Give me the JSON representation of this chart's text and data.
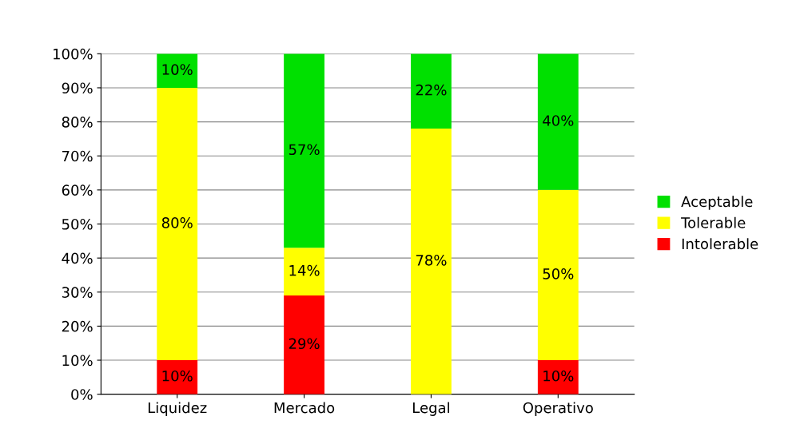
{
  "chart_data": {
    "type": "bar",
    "stacked": true,
    "categories": [
      "Liquidez",
      "Mercado",
      "Legal",
      "Operativo"
    ],
    "series": [
      {
        "name": "Intolerable",
        "color": "#ff0000",
        "values": [
          10,
          29,
          0,
          10
        ],
        "value_labels": [
          "10%",
          "29%",
          null,
          "10%"
        ]
      },
      {
        "name": "Tolerable",
        "color": "#ffff00",
        "values": [
          80,
          14,
          78,
          50
        ],
        "value_labels": [
          "80%",
          "14%",
          "78%",
          "50%"
        ]
      },
      {
        "name": "Aceptable",
        "color": "#00e000",
        "values": [
          10,
          57,
          22,
          40
        ],
        "value_labels": [
          "10%",
          "57%",
          "22%",
          "40%"
        ]
      }
    ],
    "ylim": [
      0,
      100
    ],
    "yticks": [
      {
        "value": 0,
        "label": "0%"
      },
      {
        "value": 10,
        "label": "10%"
      },
      {
        "value": 20,
        "label": "20%"
      },
      {
        "value": 30,
        "label": "30%"
      },
      {
        "value": 40,
        "label": "40%"
      },
      {
        "value": 50,
        "label": "50%"
      },
      {
        "value": 60,
        "label": "60%"
      },
      {
        "value": 70,
        "label": "70%"
      },
      {
        "value": 80,
        "label": "80%"
      },
      {
        "value": 90,
        "label": "90%"
      },
      {
        "value": 100,
        "label": "100%"
      }
    ],
    "grid": "y",
    "legend": "right"
  }
}
